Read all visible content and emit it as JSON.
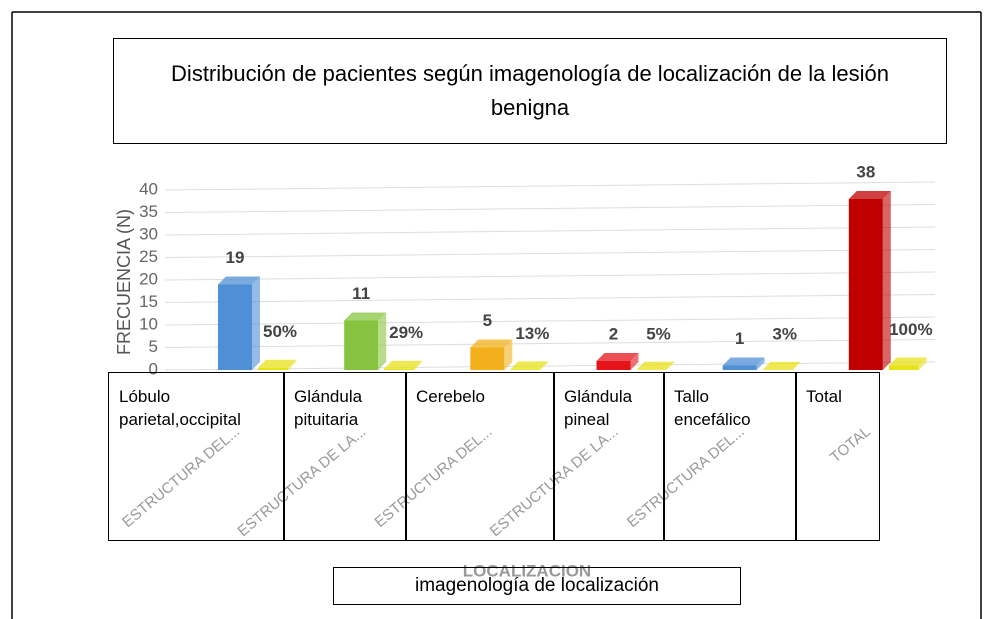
{
  "chart_data": {
    "type": "bar",
    "title": "Distribución de pacientes según imagenología de localización de la lesión benigna",
    "y_label": "FRECUENCIA (N)",
    "x_label": "LOCALIZACION",
    "x_label_box": "imagenología de localización",
    "axis_categories": [
      "ESTRUCTURA DEL...",
      "ESTRUCTURA DE LA...",
      "ESTRUCTURA DEL...",
      "ESTRUCTURA DE LA...",
      "ESTRUCTURA DEL...",
      "TOTAL"
    ],
    "categories": [
      "Lóbulo parietal,occipital",
      "Glándula pituitaria",
      "Cerebelo",
      "Glándula pineal",
      "Tallo encefálico",
      "Total"
    ],
    "series": [
      {
        "colors": [
          "#4f8fd6",
          "#86c440",
          "#f2b01c",
          "#e5141b",
          "#4f8fd6",
          "#c00000"
        ],
        "values": [
          19,
          11,
          5,
          2,
          1,
          38
        ]
      },
      {
        "color": "#e8e21a",
        "values": [
          0.5,
          0.29,
          0.13,
          0.05,
          0.03,
          1
        ],
        "value_labels": [
          "50%",
          "29%",
          "13%",
          "5%",
          "3%",
          "100%"
        ]
      }
    ],
    "ylim": [
      0,
      40
    ],
    "yticks": [
      0,
      5,
      10,
      15,
      20,
      25,
      30,
      35,
      40
    ],
    "grid": true
  }
}
